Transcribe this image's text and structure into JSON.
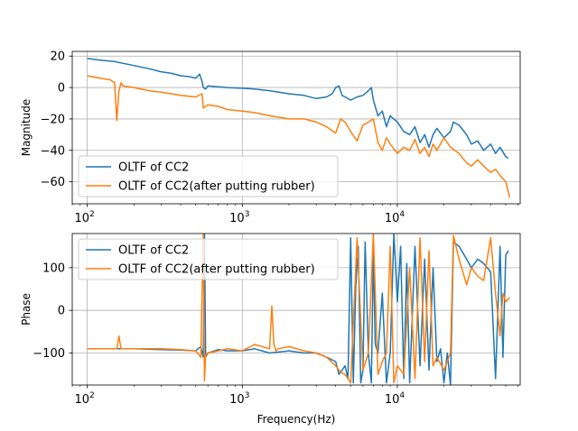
{
  "chart_data": [
    {
      "type": "line",
      "xscale": "log",
      "xlim": [
        80,
        62000
      ],
      "ylim": [
        -74,
        23
      ],
      "xticks": [
        100,
        1000,
        10000
      ],
      "yticks": [
        20,
        0,
        -20,
        -40,
        -60
      ],
      "xlabel": "",
      "ylabel": "Magnitude",
      "grid": true,
      "legend_position": "lower-left",
      "series": [
        {
          "name": "OLTF of CC2",
          "color": "#1f77b4",
          "x": [
            100,
            120,
            150,
            200,
            250,
            300,
            350,
            400,
            450,
            500,
            530,
            550,
            560,
            580,
            600,
            700,
            800,
            1000,
            1200,
            1500,
            2000,
            2500,
            3000,
            3500,
            3800,
            4000,
            4200,
            4400,
            4600,
            5000,
            5500,
            6000,
            6500,
            6800,
            7000,
            7500,
            8000,
            8500,
            9000,
            10000,
            11000,
            12000,
            13000,
            14000,
            15000,
            16000,
            17000,
            18000,
            20000,
            22000,
            23000,
            25000,
            28000,
            30000,
            33000,
            36000,
            40000,
            43000,
            46000,
            50000,
            52000
          ],
          "y": [
            18.5,
            17.5,
            16.5,
            14,
            12,
            10,
            9,
            7.5,
            7,
            6,
            8.5,
            4,
            0,
            -1,
            1,
            0.5,
            0,
            -0.5,
            -1,
            -2,
            -4,
            -5,
            -7,
            -6,
            -4,
            0,
            1,
            -5,
            -6,
            -8,
            -6,
            -5,
            -2,
            0,
            -8,
            -18,
            -15,
            -25,
            -18,
            -22,
            -28,
            -30,
            -25,
            -35,
            -30,
            -38,
            -30,
            -26,
            -32,
            -28,
            -22,
            -24,
            -30,
            -36,
            -34,
            -40,
            -36,
            -42,
            -38,
            -44,
            -45
          ]
        },
        {
          "name": "OLTF of CC2(after putting rubber)",
          "color": "#ff7f0e",
          "x": [
            100,
            120,
            140,
            150,
            155,
            160,
            165,
            170,
            200,
            250,
            300,
            400,
            500,
            550,
            560,
            580,
            600,
            700,
            800,
            1000,
            1200,
            1500,
            2000,
            2500,
            3000,
            3500,
            4000,
            4300,
            4600,
            5000,
            5500,
            6000,
            6500,
            7000,
            7500,
            8000,
            8500,
            9000,
            10000,
            11000,
            12000,
            13000,
            14000,
            15000,
            16000,
            17000,
            18000,
            20000,
            22000,
            25000,
            28000,
            30000,
            33000,
            36000,
            40000,
            43000,
            46000,
            50000,
            53000
          ],
          "y": [
            7.5,
            6,
            5,
            3,
            -21,
            -2,
            3,
            1,
            0,
            -2,
            -3,
            -5,
            -6,
            -4,
            -13,
            -12,
            -11,
            -12,
            -14,
            -15,
            -16,
            -18,
            -20,
            -20,
            -22,
            -25,
            -29,
            -20,
            -22,
            -28,
            -34,
            -24,
            -22,
            -20,
            -35,
            -40,
            -32,
            -36,
            -42,
            -38,
            -40,
            -33,
            -42,
            -38,
            -44,
            -36,
            -40,
            -32,
            -38,
            -42,
            -48,
            -50,
            -46,
            -50,
            -54,
            -52,
            -56,
            -60,
            -70
          ]
        }
      ]
    },
    {
      "type": "line",
      "xscale": "log",
      "xlim": [
        80,
        62000
      ],
      "ylim": [
        -175,
        180
      ],
      "xticks": [
        100,
        1000,
        10000
      ],
      "yticks": [
        100,
        0,
        -100
      ],
      "xlabel": "Frequency(Hz)",
      "ylabel": "Phase",
      "grid": true,
      "legend_position": "upper-left",
      "series": [
        {
          "name": "OLTF of CC2",
          "color": "#1f77b4",
          "x": [
            100,
            150,
            200,
            300,
            400,
            500,
            540,
            560,
            570,
            580,
            600,
            700,
            800,
            1000,
            1200,
            1500,
            2000,
            2500,
            3000,
            3500,
            4000,
            4200,
            4400,
            4600,
            4800,
            5000,
            5200,
            5400,
            5600,
            5800,
            6000,
            6200,
            6500,
            6800,
            7000,
            7200,
            7500,
            8000,
            8500,
            9000,
            9500,
            10000,
            10500,
            11000,
            11500,
            12000,
            13000,
            14000,
            15000,
            16000,
            17000,
            18000,
            19000,
            20000,
            21000,
            22000,
            23000,
            25000,
            28000,
            30000,
            33000,
            36000,
            40000,
            43000,
            46000,
            48000,
            50000,
            52000
          ],
          "y": [
            -90,
            -90,
            -90,
            -92,
            -93,
            -95,
            -85,
            -110,
            180,
            -110,
            -100,
            -92,
            -95,
            -95,
            -90,
            -100,
            -95,
            -100,
            -100,
            -110,
            -120,
            -150,
            -140,
            -130,
            -160,
            170,
            -170,
            60,
            150,
            -170,
            -140,
            160,
            -100,
            -170,
            140,
            -80,
            -100,
            40,
            -170,
            -100,
            180,
            20,
            150,
            -160,
            110,
            -170,
            150,
            -130,
            120,
            -140,
            100,
            -120,
            -90,
            -170,
            -100,
            -175,
            160,
            150,
            120,
            100,
            120,
            110,
            90,
            -160,
            150,
            -110,
            130,
            140
          ]
        },
        {
          "name": "OLTF of CC2(after putting rubber)",
          "color": "#ff7f0e",
          "x": [
            100,
            140,
            155,
            160,
            165,
            170,
            200,
            300,
            400,
            500,
            540,
            560,
            570,
            580,
            600,
            700,
            800,
            1000,
            1200,
            1500,
            1550,
            1600,
            1650,
            1700,
            2000,
            2500,
            3000,
            3500,
            4000,
            4300,
            4600,
            5000,
            5500,
            6000,
            6500,
            7000,
            7500,
            8000,
            8500,
            9000,
            9500,
            10000,
            11000,
            12000,
            13000,
            14000,
            15000,
            16000,
            17000,
            18000,
            20000,
            22000,
            23000,
            25000,
            28000,
            30000,
            33000,
            36000,
            40000,
            43000,
            46000,
            48000,
            50000,
            53000
          ],
          "y": [
            -90,
            -90,
            -90,
            -60,
            -90,
            -90,
            -90,
            -90,
            -92,
            -95,
            -110,
            180,
            -165,
            -105,
            -100,
            -95,
            -90,
            -95,
            -80,
            -90,
            10,
            -80,
            -95,
            -90,
            -85,
            -95,
            -100,
            -110,
            -130,
            -145,
            -150,
            -170,
            170,
            -140,
            -100,
            180,
            -150,
            -120,
            -100,
            150,
            -170,
            -130,
            -150,
            100,
            -160,
            170,
            -120,
            140,
            -130,
            -110,
            -140,
            -100,
            175,
            120,
            60,
            100,
            80,
            70,
            170,
            40,
            -60,
            40,
            20,
            30
          ]
        }
      ]
    }
  ]
}
